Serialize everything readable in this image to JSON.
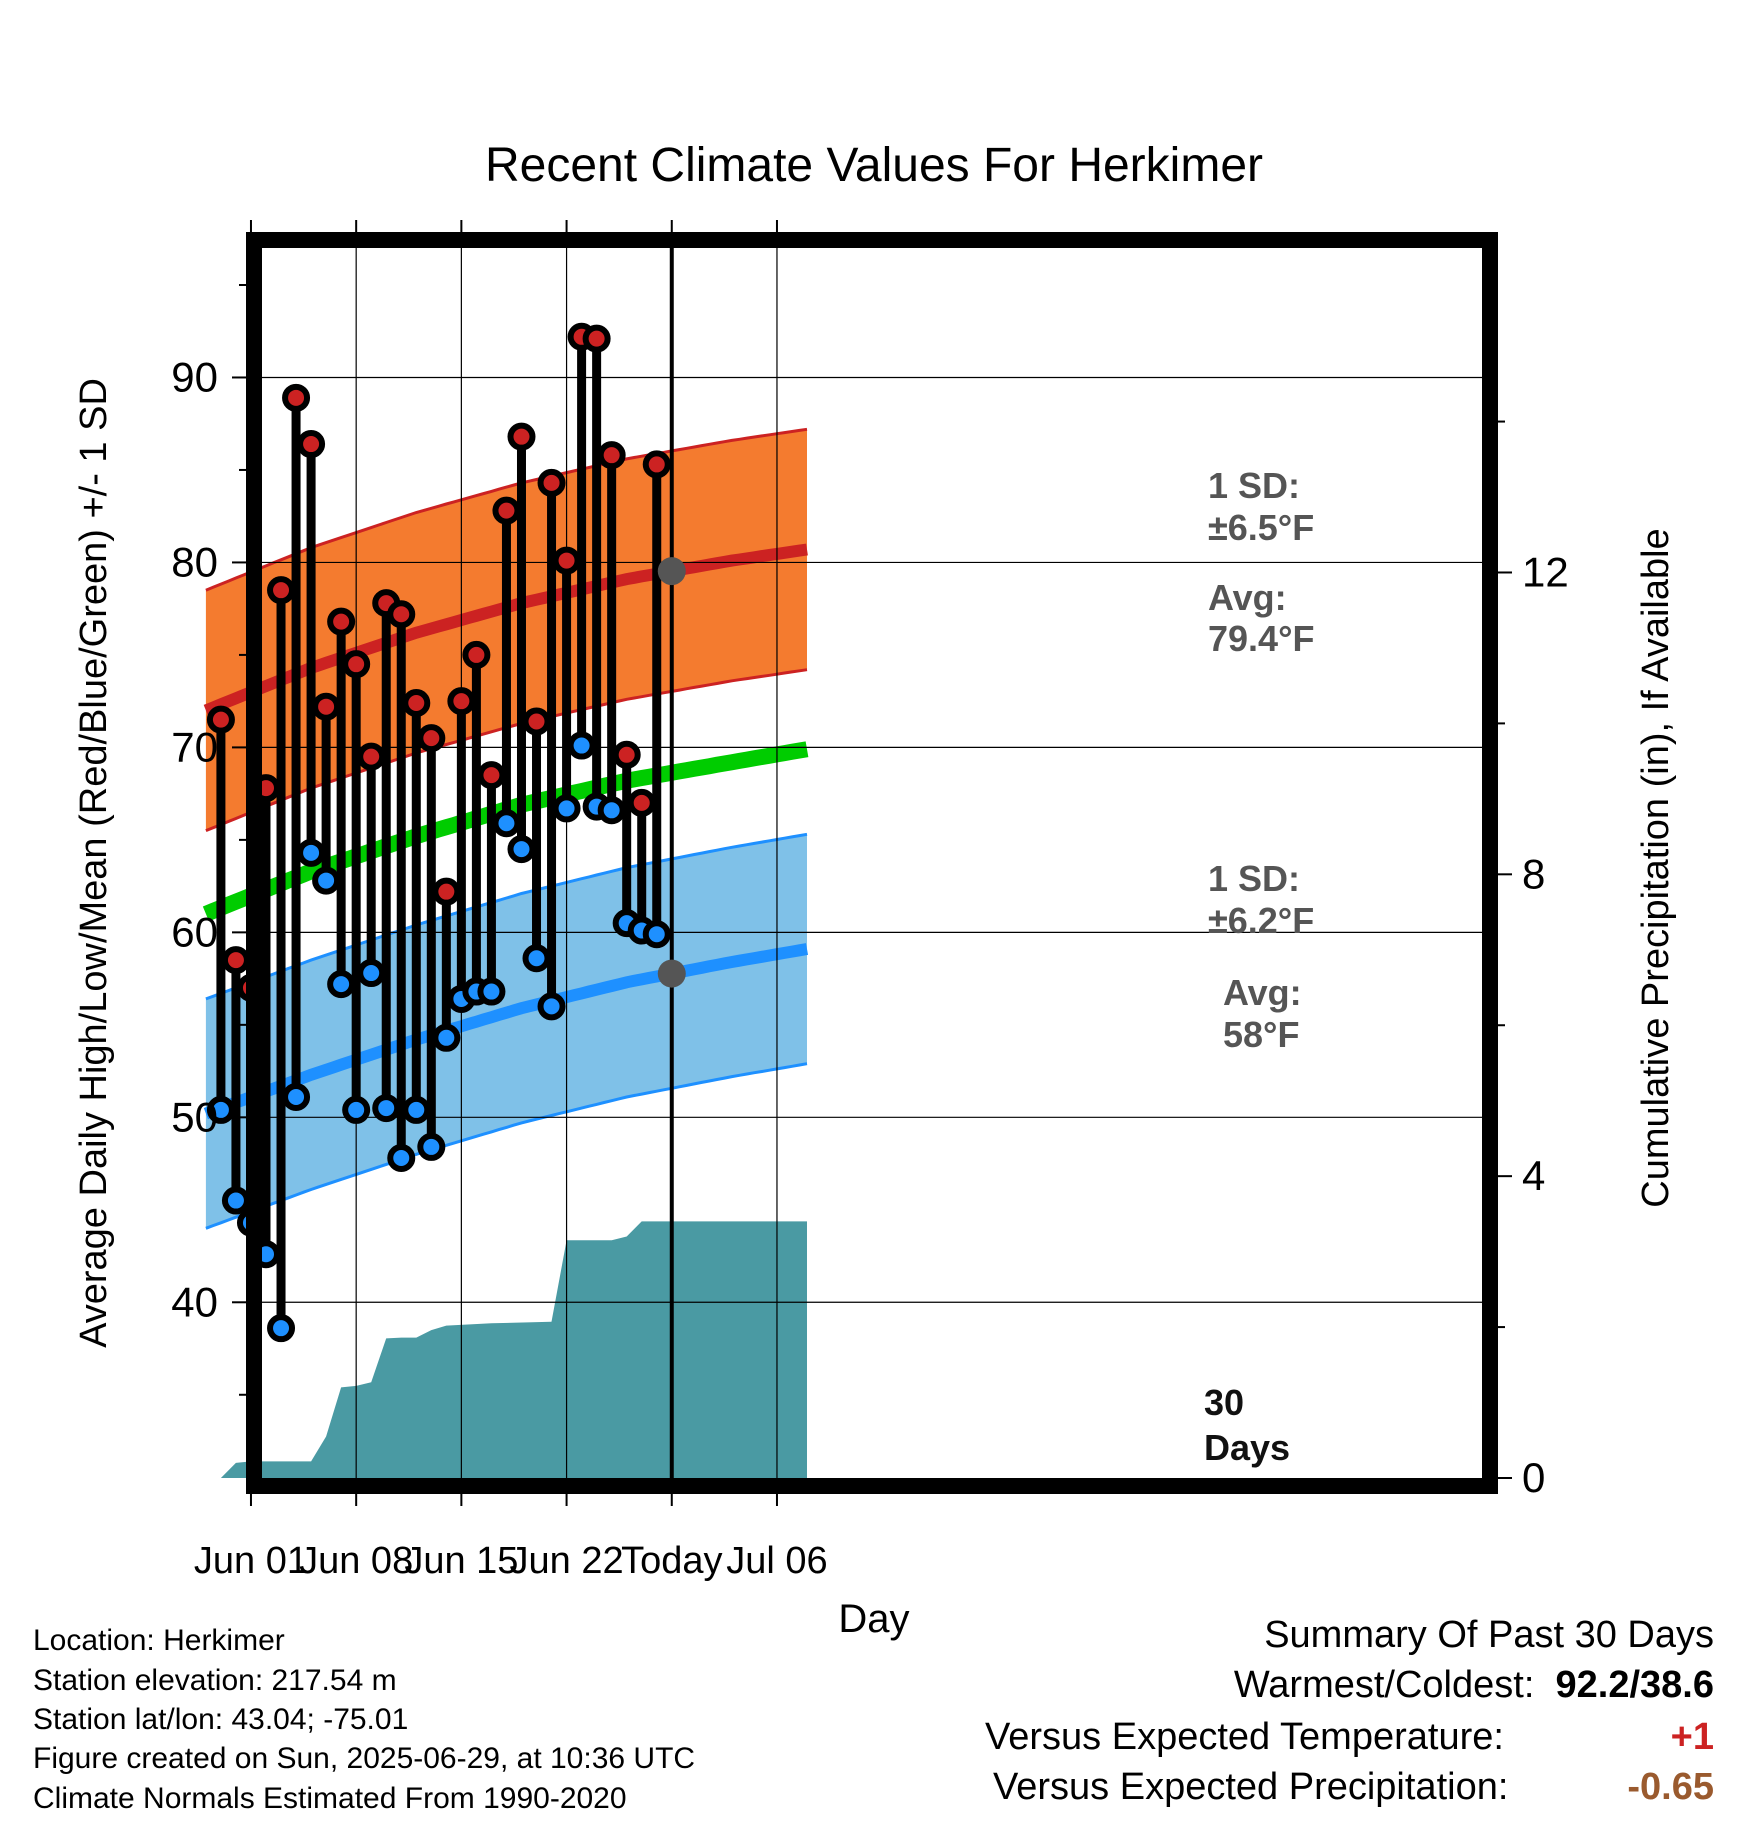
{
  "chart_data": {
    "type": "line",
    "title": "Recent Climate Values For Herkimer",
    "xlabel": "Day",
    "ylabel": "Average Daily High/Low/Mean (Red/Blue/Green) +/- 1 SD",
    "y2label": "Cumulative Precipitation (in), If Available",
    "xticks": [
      "Jun 01",
      "Jun 08",
      "Jun 15",
      "Jun 22",
      "Today",
      "Jul 06"
    ],
    "xlim": [
      "2025-05-29",
      "2025-07-08"
    ],
    "ylim": [
      30.5,
      97
    ],
    "yticks": [
      40,
      50,
      60,
      70,
      80,
      90
    ],
    "y2lim": [
      0,
      16.3
    ],
    "y2ticks": [
      0,
      4,
      8,
      12
    ],
    "grid": true,
    "colors": {
      "high": "#cc2222",
      "high_band": "#f47b2f",
      "low": "#1e90ff",
      "low_band": "#7fc1e8",
      "mean": "#00cc00",
      "precip": "#4a9aa3",
      "annotation": "#555555",
      "temp_departure": "#cc2222",
      "precip_departure": "#9a5a2e"
    },
    "normals": {
      "dates": [
        "2025-05-29",
        "2025-06-05",
        "2025-06-12",
        "2025-06-19",
        "2025-06-26",
        "2025-07-03",
        "2025-07-08"
      ],
      "avg_high": [
        72.0,
        74.3,
        76.2,
        77.8,
        79.1,
        80.1,
        80.7
      ],
      "avg_low": [
        50.2,
        52.3,
        54.2,
        55.9,
        57.3,
        58.4,
        59.1
      ],
      "avg_mean": [
        61.0,
        63.3,
        65.2,
        66.9,
        68.2,
        69.2,
        69.9
      ],
      "sd_high": 6.5,
      "sd_low": 6.2
    },
    "daily": {
      "dates": [
        "2025-05-30",
        "2025-05-31",
        "2025-06-01",
        "2025-06-02",
        "2025-06-03",
        "2025-06-04",
        "2025-06-05",
        "2025-06-06",
        "2025-06-07",
        "2025-06-08",
        "2025-06-09",
        "2025-06-10",
        "2025-06-11",
        "2025-06-12",
        "2025-06-13",
        "2025-06-14",
        "2025-06-15",
        "2025-06-16",
        "2025-06-17",
        "2025-06-18",
        "2025-06-19",
        "2025-06-20",
        "2025-06-21",
        "2025-06-22",
        "2025-06-23",
        "2025-06-24",
        "2025-06-25",
        "2025-06-26",
        "2025-06-27",
        "2025-06-28"
      ],
      "high": [
        71.5,
        58.5,
        57.0,
        67.8,
        78.5,
        88.9,
        86.4,
        72.2,
        76.8,
        74.5,
        69.5,
        77.8,
        77.2,
        72.4,
        70.5,
        62.2,
        72.5,
        75.0,
        68.5,
        82.8,
        86.8,
        71.4,
        84.3,
        80.1,
        92.2,
        92.1,
        85.8,
        69.6,
        67.0,
        85.3
      ],
      "low": [
        50.4,
        45.5,
        44.3,
        42.6,
        38.6,
        51.1,
        64.3,
        62.8,
        57.2,
        50.4,
        57.8,
        50.5,
        47.8,
        50.4,
        48.4,
        54.3,
        56.4,
        56.8,
        56.8,
        65.9,
        64.5,
        58.6,
        56.0,
        66.7,
        70.1,
        66.8,
        66.6,
        60.5,
        60.1,
        59.9
      ]
    },
    "cumulative_precip": {
      "dates": [
        "2025-05-30",
        "2025-05-31",
        "2025-06-01",
        "2025-06-04",
        "2025-06-05",
        "2025-06-06",
        "2025-06-07",
        "2025-06-08",
        "2025-06-09",
        "2025-06-10",
        "2025-06-11",
        "2025-06-12",
        "2025-06-13",
        "2025-06-14",
        "2025-06-17",
        "2025-06-21",
        "2025-06-22",
        "2025-06-25",
        "2025-06-26",
        "2025-06-27",
        "2025-06-28",
        "2025-07-08"
      ],
      "values": [
        0.0,
        0.2,
        0.22,
        0.22,
        0.22,
        0.55,
        1.2,
        1.22,
        1.27,
        1.85,
        1.86,
        1.86,
        1.96,
        2.02,
        2.05,
        2.07,
        3.15,
        3.15,
        3.2,
        3.4,
        3.4,
        3.4
      ]
    },
    "annotations": {
      "high_sd": [
        "1 SD:",
        "±6.5°F"
      ],
      "high_avg": [
        "Avg:",
        "79.4°F"
      ],
      "low_sd": [
        "1 SD:",
        "±6.2°F"
      ],
      "low_avg": [
        "Avg:",
        "58°F"
      ],
      "window": [
        "30",
        "Days"
      ]
    }
  },
  "footer": {
    "location": "Location: Herkimer",
    "elevation": "Station elevation: 217.54 m",
    "latlon": "Station lat/lon: 43.04; -75.01",
    "created": "Figure created on Sun, 2025-06-29, at 10:36 UTC",
    "normals": "Climate Normals Estimated From 1990-2020"
  },
  "summary": {
    "heading": "Summary Of Past 30 Days",
    "warm_cold_label": "Warmest/Coldest:",
    "warm_cold_value": "92.2/38.6",
    "temp_label": "Versus Expected Temperature:",
    "temp_value": "+1",
    "precip_label": "Versus Expected Precipitation:",
    "precip_value": "-0.65"
  }
}
